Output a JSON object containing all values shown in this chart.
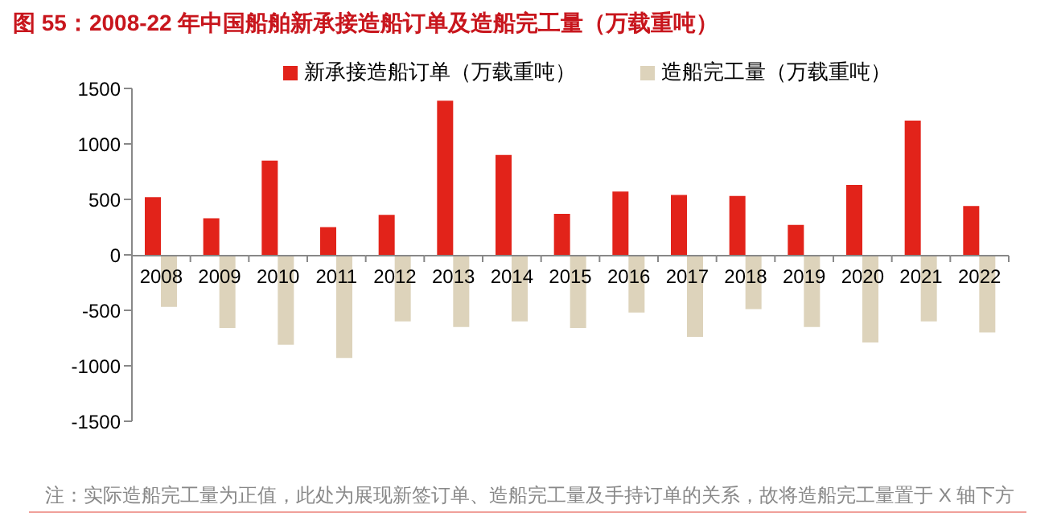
{
  "chart_data": {
    "type": "bar",
    "title": "图 55：2008-22 年中国船舶新承接造船订单及造船完工量（万载重吨）",
    "categories": [
      "2008",
      "2009",
      "2010",
      "2011",
      "2012",
      "2013",
      "2014",
      "2015",
      "2016",
      "2017",
      "2018",
      "2019",
      "2020",
      "2021",
      "2022"
    ],
    "series": [
      {
        "name": "新承接造船订单（万载重吨）",
        "color": "#e2231a",
        "values": [
          520,
          330,
          850,
          250,
          360,
          1390,
          900,
          370,
          570,
          540,
          530,
          270,
          630,
          1210,
          440
        ]
      },
      {
        "name": "造船完工量（万载重吨）",
        "color": "#ddd3bb",
        "values": [
          -470,
          -660,
          -810,
          -930,
          -600,
          -650,
          -600,
          -660,
          -520,
          -740,
          -490,
          -650,
          -790,
          -600,
          -700
        ]
      }
    ],
    "ylim": [
      -1500,
      1500
    ],
    "yticks": [
      -1500,
      -1000,
      -500,
      0,
      500,
      1000,
      1500
    ],
    "grid": false,
    "legend": "top",
    "annotations": [
      "注：实际造船完工量为正值，此处为展现新签订单、造船完工量及手持订单的关系，故将造船完工量置于 X 轴下方"
    ]
  }
}
